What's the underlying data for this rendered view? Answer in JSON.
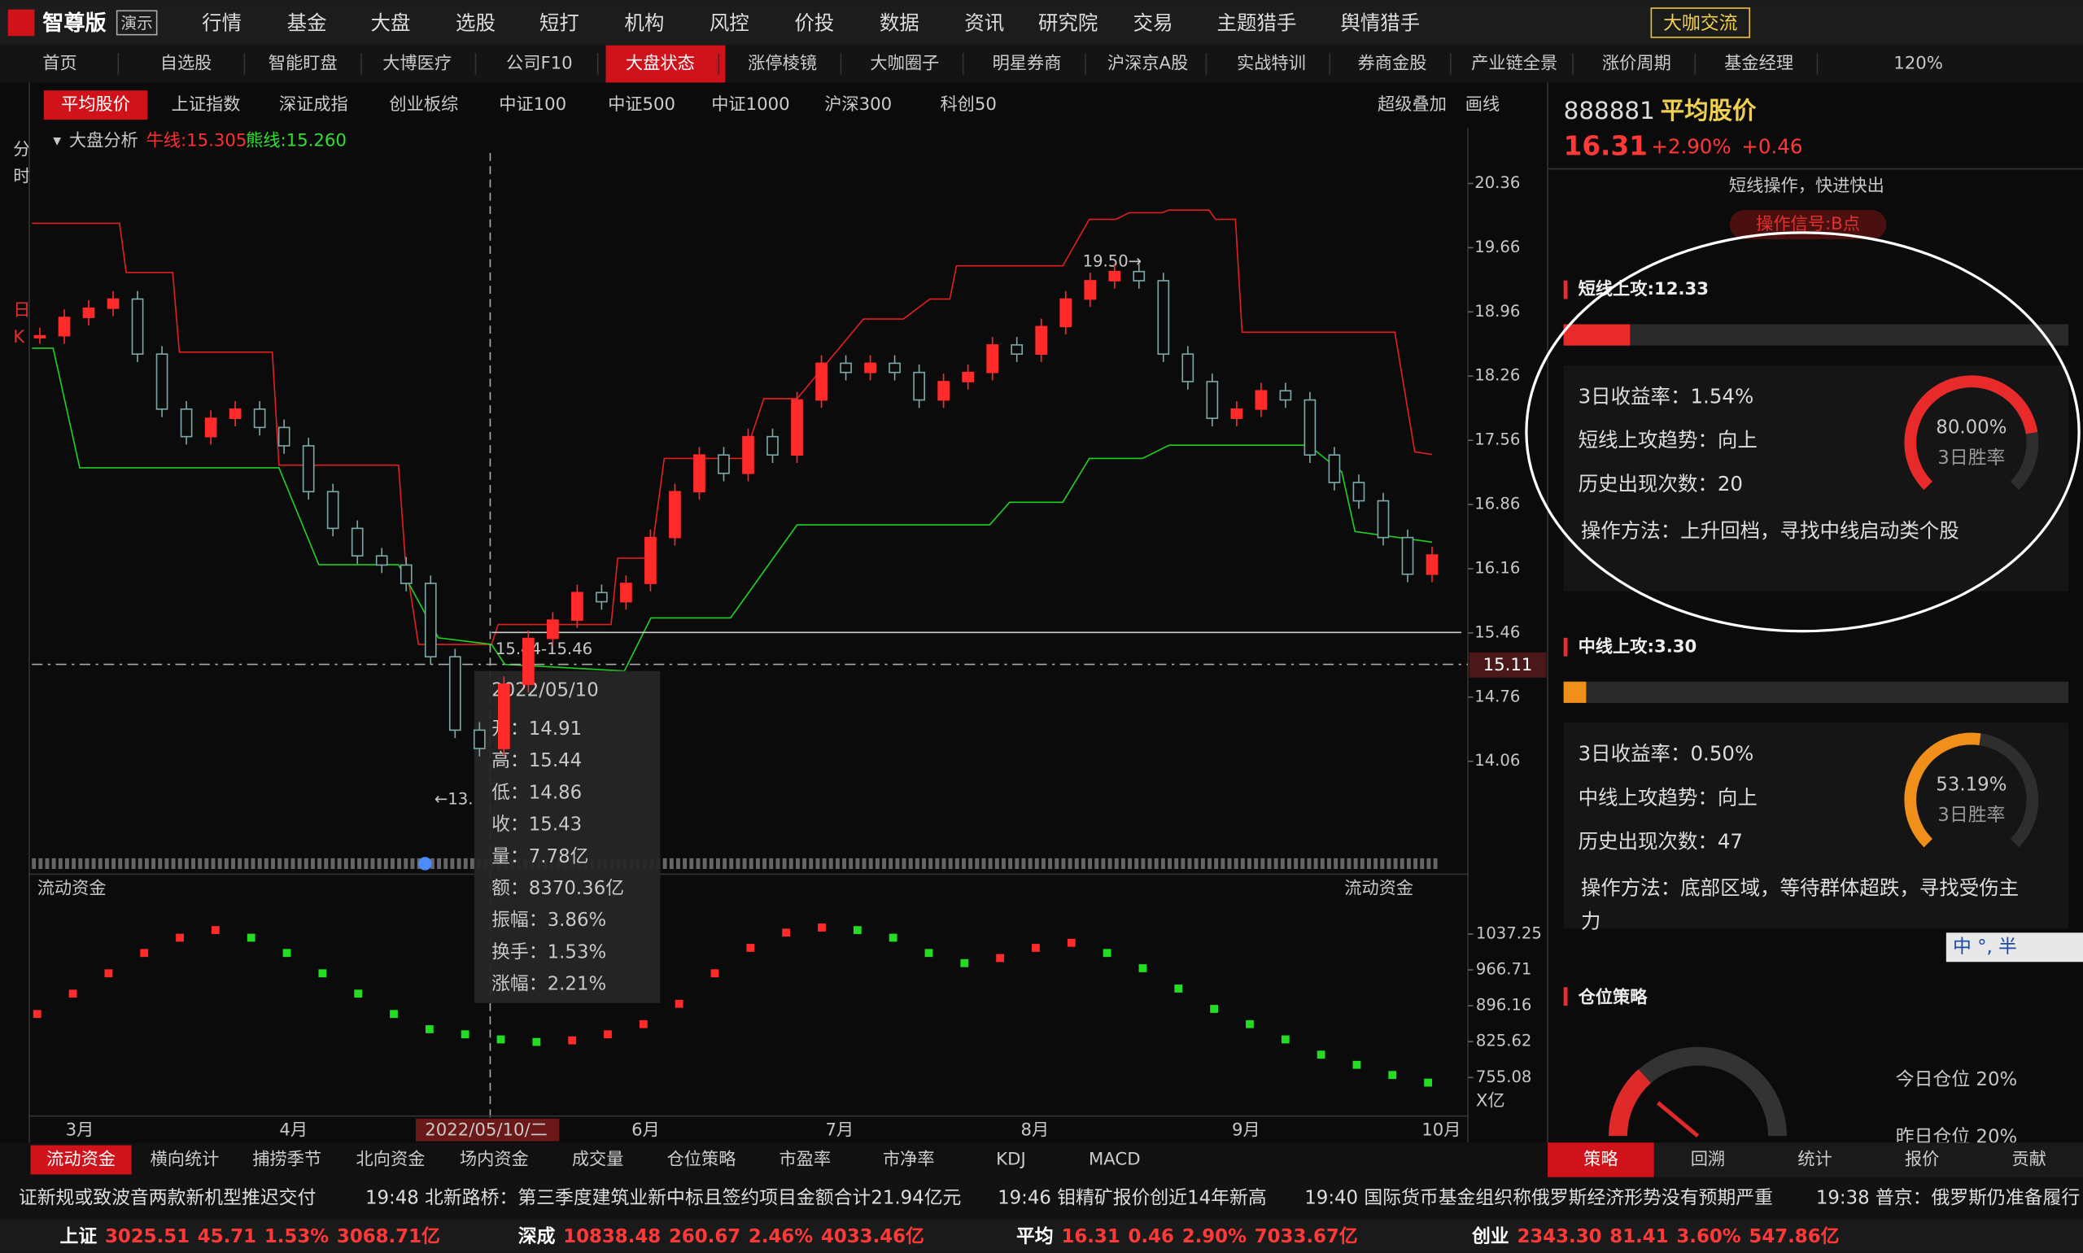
{
  "app": {
    "logo": "智尊版",
    "badge": "演示",
    "top_menu": [
      "行情",
      "基金",
      "大盘",
      "选股",
      "短打",
      "机构",
      "风控",
      "价投",
      "数据",
      "资讯",
      "研究院",
      "交易",
      "主题猎手",
      "舆情猎手"
    ],
    "top_button": "大咖交流",
    "zoom": "120%",
    "tabs": [
      "首页",
      "自选股",
      "智能盯盘",
      "大博医疗",
      "公司F10",
      "大盘状态",
      "涨停棱镜",
      "大咖圈子",
      "明星券商",
      "沪深京A股",
      "实战特训",
      "券商金股",
      "产业链全景",
      "涨价周期",
      "基金经理"
    ],
    "index_tabs": [
      "平均股价",
      "上证指数",
      "深证成指",
      "创业板综",
      "中证100",
      "中证500",
      "中证1000",
      "沪深300",
      "科创50"
    ],
    "chart_tools": [
      "超级叠加",
      "画线"
    ],
    "side_modes": [
      "分",
      "时",
      "日",
      "K"
    ]
  },
  "main_chart": {
    "title": "大盘分析",
    "bull_line": "牛线:15.305",
    "bear_line": "熊线:15.260",
    "yticks": [
      20.36,
      19.66,
      18.96,
      18.26,
      17.56,
      16.86,
      16.16,
      15.46,
      14.76,
      14.06
    ],
    "closes": [
      18.7,
      18.9,
      19.0,
      19.1,
      18.5,
      17.9,
      17.6,
      17.8,
      17.9,
      17.7,
      17.5,
      17.0,
      16.6,
      16.3,
      16.2,
      16.0,
      15.2,
      14.4,
      14.2,
      14.9,
      15.4,
      15.6,
      15.9,
      15.8,
      16.0,
      16.5,
      17.0,
      17.4,
      17.2,
      17.6,
      17.4,
      18.0,
      18.4,
      18.3,
      18.4,
      18.3,
      18.0,
      18.2,
      18.3,
      18.6,
      18.5,
      18.8,
      19.1,
      19.3,
      19.4,
      19.3,
      18.5,
      18.2,
      17.8,
      17.9,
      18.1,
      18.0,
      17.4,
      17.1,
      16.9,
      16.5,
      16.1,
      16.31
    ],
    "annotations": [
      "19.50→",
      "15.44-15.46",
      "←13."
    ],
    "cursor_price": "15.11",
    "months": [
      "3月",
      "4月",
      "2022/05/10/二",
      "6月",
      "7月",
      "8月",
      "9月",
      "10月"
    ],
    "tooltip": {
      "date": "2022/05/10",
      "rows": [
        "开：14.91",
        "高：15.44",
        "低：14.86",
        "收：15.43",
        "量：7.78亿",
        "额：8370.36亿",
        "振幅：3.86%",
        "换手：1.53%",
        "涨幅：2.21%"
      ]
    }
  },
  "flow_chart": {
    "title": "流动资金",
    "unit": "X亿",
    "yticks": [
      1037.25,
      966.71,
      896.16,
      825.62,
      755.08
    ],
    "values": [
      880,
      920,
      960,
      1000,
      1030,
      1045,
      1030,
      1000,
      960,
      920,
      880,
      850,
      840,
      830,
      825,
      828,
      840,
      860,
      900,
      960,
      1010,
      1040,
      1050,
      1045,
      1030,
      1000,
      980,
      990,
      1010,
      1020,
      1000,
      970,
      930,
      890,
      860,
      830,
      800,
      780,
      760,
      745
    ]
  },
  "bottom_tabs": [
    "流动资金",
    "横向统计",
    "捕捞季节",
    "北向资金",
    "场内资金",
    "成交量",
    "仓位策略",
    "市盈率",
    "市净率",
    "KDJ",
    "MACD"
  ],
  "side_panel": {
    "code": "888881",
    "name": "平均股价",
    "price": "16.31",
    "change_pct": "+2.90%",
    "change": "+0.46",
    "note": "短线操作，快进快出",
    "signal": "操作信号:B点",
    "sections": [
      {
        "title": "短线上攻:12.33",
        "rows": [
          "3日收益率：1.54%",
          "短线上攻趋势：向上",
          "历史出现次数：20",
          "操作方法：上升回档，寻找中线启动类个股"
        ],
        "gauge": "80.00%",
        "gauge_label": "3日胜率"
      },
      {
        "title": "中线上攻:3.30",
        "rows": [
          "3日收益率：0.50%",
          "中线上攻趋势：向上",
          "历史出现次数：47",
          "操作方法：底部区域，等待群体超跌，寻找受伤主",
          "力"
        ],
        "gauge": "53.19%",
        "gauge_label": "3日胜率"
      }
    ],
    "position_title": "仓位策略",
    "position_rows": [
      "今日仓位  20%",
      "昨日仓位  20%"
    ],
    "tabs": [
      "策略",
      "回溯",
      "统计",
      "报价",
      "贡献"
    ],
    "ime": "中 °, 半"
  },
  "news": [
    "证新规或致波音两款新机型推迟交付",
    "19:48 北新路桥：第三季度建筑业新中标且签约项目金额合计21.94亿元",
    "19:46 钼精矿报价创近14年新高",
    "19:40 国际货币基金组织称俄罗斯经济形势没有预期严重",
    "19:38 普京：俄罗斯仍准备履行"
  ],
  "status": [
    {
      "label": "上证",
      "values": [
        "3025.51",
        "45.71",
        "1.53%",
        "3068.71亿"
      ]
    },
    {
      "label": "深成",
      "values": [
        "10838.48",
        "260.67",
        "2.46%",
        "4033.46亿"
      ]
    },
    {
      "label": "平均",
      "values": [
        "16.31",
        "0.46",
        "2.90%",
        "7033.67亿"
      ]
    },
    {
      "label": "创业",
      "values": [
        "2343.30",
        "81.41",
        "3.60%",
        "547.86亿"
      ]
    }
  ]
}
